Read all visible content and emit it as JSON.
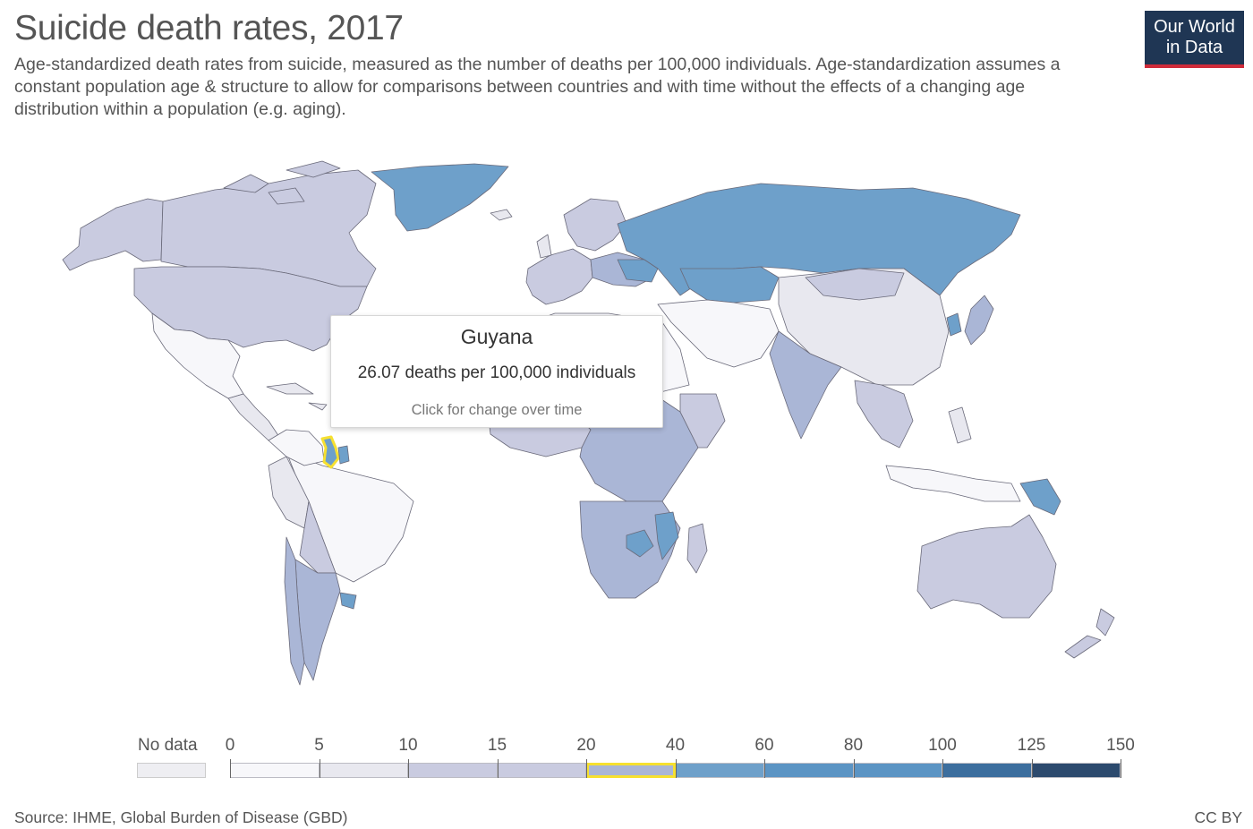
{
  "header": {
    "title": "Suicide death rates, 2017",
    "subtitle": "Age-standardized death rates from suicide, measured as the number of deaths per 100,000 individuals. Age-standardization assumes a constant population age & structure to allow for comparisons between countries and with time without the effects of a changing age distribution within a population (e.g. aging).",
    "logo_line1": "Our World",
    "logo_line2": "in Data"
  },
  "colors": {
    "no_data": "#eeeef2",
    "bins": [
      "#f7f7fa",
      "#e8e8ef",
      "#c9cbe0",
      "#aab6d6",
      "#6ea0ca",
      "#5b94c4",
      "#3c6e9e",
      "#2c4a6e"
    ],
    "highlight": "#f6e030",
    "border": "#555566"
  },
  "tooltip": {
    "country": "Guyana",
    "value_text": "26.07 deaths per 100,000 individuals",
    "hint": "Click for change over time"
  },
  "legend": {
    "no_data_label": "No data",
    "ticks": [
      "0",
      "5",
      "10",
      "15",
      "20",
      "40",
      "60",
      "80",
      "100",
      "125",
      "150"
    ],
    "active_bin": "20–40"
  },
  "footer": {
    "source": "Source: IHME, Global Burden of Disease (GBD)",
    "license": "CC BY"
  }
}
